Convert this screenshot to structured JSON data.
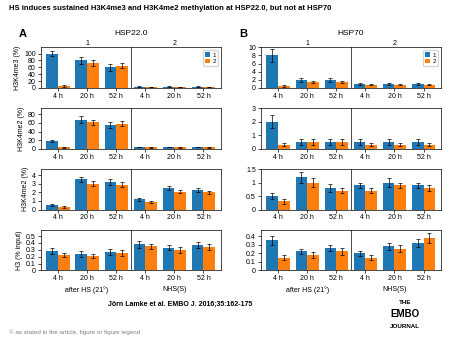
{
  "title": "HS induces sustained H3K4me3 and H3K4me2 methylation at HSP22.0, but not at HSP70",
  "annotations": [
    "Jörn Lamke et al. EMBO J. 2016;35:162-175",
    "© as stated in the article, figure or figure legend",
    "THE",
    "EMBO",
    "JOURNAL"
  ],
  "chart_data": [
    {
      "type": "bar",
      "title": "HSP22.0",
      "ylabel": "H3K4me3 (%)",
      "categories": [
        "4 h",
        "20 h",
        "52 h",
        "4 h",
        "20 h",
        "52 h"
      ],
      "ylim": [
        0,
        118
      ],
      "yticks": [
        0,
        20,
        40,
        60,
        80,
        100
      ],
      "legend": "upper right",
      "annotations": [
        "A",
        "1",
        "2"
      ],
      "series": [
        {
          "name": "1",
          "values": [
            100,
            80,
            60,
            4,
            4,
            4
          ],
          "errors": [
            8,
            10,
            10,
            1,
            1,
            1
          ]
        },
        {
          "name": "2",
          "values": [
            5,
            72,
            65,
            3,
            3,
            3
          ],
          "errors": [
            2,
            8,
            8,
            1,
            1,
            1
          ]
        }
      ]
    },
    {
      "type": "bar",
      "title": "HSP70",
      "categories": [
        "4 h",
        "20 h",
        "52 h",
        "4 h",
        "20 h",
        "52 h"
      ],
      "ylim": [
        0,
        10
      ],
      "yticks": [
        0,
        2,
        4,
        6,
        8,
        10
      ],
      "legend": "upper right",
      "annotations": [
        "B",
        "1",
        "2"
      ],
      "series": [
        {
          "name": "1",
          "values": [
            8,
            2,
            2,
            1,
            1,
            1
          ],
          "errors": [
            1.5,
            0.5,
            0.5,
            0.3,
            0.3,
            0.3
          ]
        },
        {
          "name": "2",
          "values": [
            0.5,
            1.5,
            1.5,
            0.8,
            0.8,
            0.8
          ],
          "errors": [
            0.2,
            0.3,
            0.3,
            0.2,
            0.2,
            0.2
          ]
        }
      ]
    },
    {
      "type": "bar",
      "ylabel": "H3K4me2 (%)",
      "categories": [
        "4 h",
        "20 h",
        "52 h",
        "4 h",
        "20 h",
        "52 h"
      ],
      "ylim": [
        0,
        94.4
      ],
      "yticks": [
        0,
        20,
        40,
        60,
        80
      ],
      "series": [
        {
          "values": [
            18,
            68,
            55,
            4,
            4,
            4
          ],
          "errors": [
            3,
            7,
            7,
            1,
            1,
            1
          ]
        },
        {
          "values": [
            3,
            62,
            58,
            3,
            3,
            3
          ],
          "errors": [
            1,
            6,
            6,
            1,
            1,
            1
          ]
        }
      ]
    },
    {
      "type": "bar",
      "categories": [
        "4 h",
        "20 h",
        "52 h",
        "4 h",
        "20 h",
        "52 h"
      ],
      "ylim": [
        0,
        3
      ],
      "yticks": [
        0,
        1,
        2,
        3
      ],
      "series": [
        {
          "values": [
            2,
            0.5,
            0.5,
            0.5,
            0.5,
            0.5
          ],
          "errors": [
            0.5,
            0.2,
            0.2,
            0.2,
            0.2,
            0.2
          ]
        },
        {
          "values": [
            0.3,
            0.5,
            0.5,
            0.3,
            0.3,
            0.3
          ],
          "errors": [
            0.1,
            0.2,
            0.2,
            0.1,
            0.1,
            0.1
          ]
        }
      ]
    },
    {
      "type": "bar",
      "ylabel": "H3K4me2 (%)",
      "categories": [
        "4 h",
        "20 h",
        "52 h",
        "4 h",
        "20 h",
        "52 h"
      ],
      "ylim": [
        0,
        4.72
      ],
      "yticks": [
        0,
        1,
        2,
        3,
        4
      ],
      "series": [
        {
          "values": [
            0.5,
            3.5,
            3.2,
            1.2,
            2.5,
            2.3
          ],
          "errors": [
            0.1,
            0.3,
            0.3,
            0.15,
            0.2,
            0.2
          ]
        },
        {
          "values": [
            0.3,
            3.0,
            2.9,
            0.9,
            2.1,
            2.0
          ],
          "errors": [
            0.1,
            0.3,
            0.3,
            0.1,
            0.2,
            0.2
          ]
        }
      ]
    },
    {
      "type": "bar",
      "categories": [
        "4 h",
        "20 h",
        "52 h",
        "4 h",
        "20 h",
        "52 h"
      ],
      "ylim": [
        0,
        1.5
      ],
      "yticks": [
        0,
        0.5,
        1,
        1.5
      ],
      "series": [
        {
          "values": [
            0.5,
            1.2,
            0.8,
            0.9,
            1.0,
            0.9
          ],
          "errors": [
            0.1,
            0.2,
            0.15,
            0.1,
            0.15,
            0.1
          ]
        },
        {
          "values": [
            0.3,
            1.0,
            0.7,
            0.7,
            0.9,
            0.8
          ],
          "errors": [
            0.08,
            0.15,
            0.1,
            0.1,
            0.1,
            0.1
          ]
        }
      ]
    },
    {
      "type": "bar",
      "ylabel": "H3 (% input)",
      "categories": [
        "4 h",
        "20 h",
        "52 h",
        "4 h",
        "20 h",
        "52 h"
      ],
      "ylim": [
        0,
        0.59
      ],
      "yticks": [
        0,
        0.1,
        0.2,
        0.3,
        0.4,
        0.5
      ],
      "annotations": [
        "after HS (21°)",
        "NHS(S)"
      ],
      "series": [
        {
          "values": [
            0.28,
            0.24,
            0.27,
            0.38,
            0.33,
            0.37
          ],
          "errors": [
            0.04,
            0.04,
            0.04,
            0.05,
            0.04,
            0.05
          ]
        },
        {
          "values": [
            0.23,
            0.21,
            0.25,
            0.35,
            0.3,
            0.34
          ],
          "errors": [
            0.03,
            0.03,
            0.04,
            0.04,
            0.04,
            0.04
          ]
        }
      ]
    },
    {
      "type": "bar",
      "categories": [
        "4 h",
        "20 h",
        "52 h",
        "4 h",
        "20 h",
        "52 h"
      ],
      "ylim": [
        0,
        0.472
      ],
      "yticks": [
        0,
        0.1,
        0.2,
        0.3,
        0.4
      ],
      "annotations": [
        "after HS (21°)",
        "NHS(S)"
      ],
      "series": [
        {
          "values": [
            0.35,
            0.22,
            0.26,
            0.2,
            0.28,
            0.32
          ],
          "errors": [
            0.05,
            0.03,
            0.04,
            0.03,
            0.04,
            0.05
          ]
        },
        {
          "values": [
            0.15,
            0.18,
            0.22,
            0.15,
            0.25,
            0.38
          ],
          "errors": [
            0.03,
            0.03,
            0.04,
            0.03,
            0.04,
            0.06
          ]
        }
      ]
    }
  ]
}
